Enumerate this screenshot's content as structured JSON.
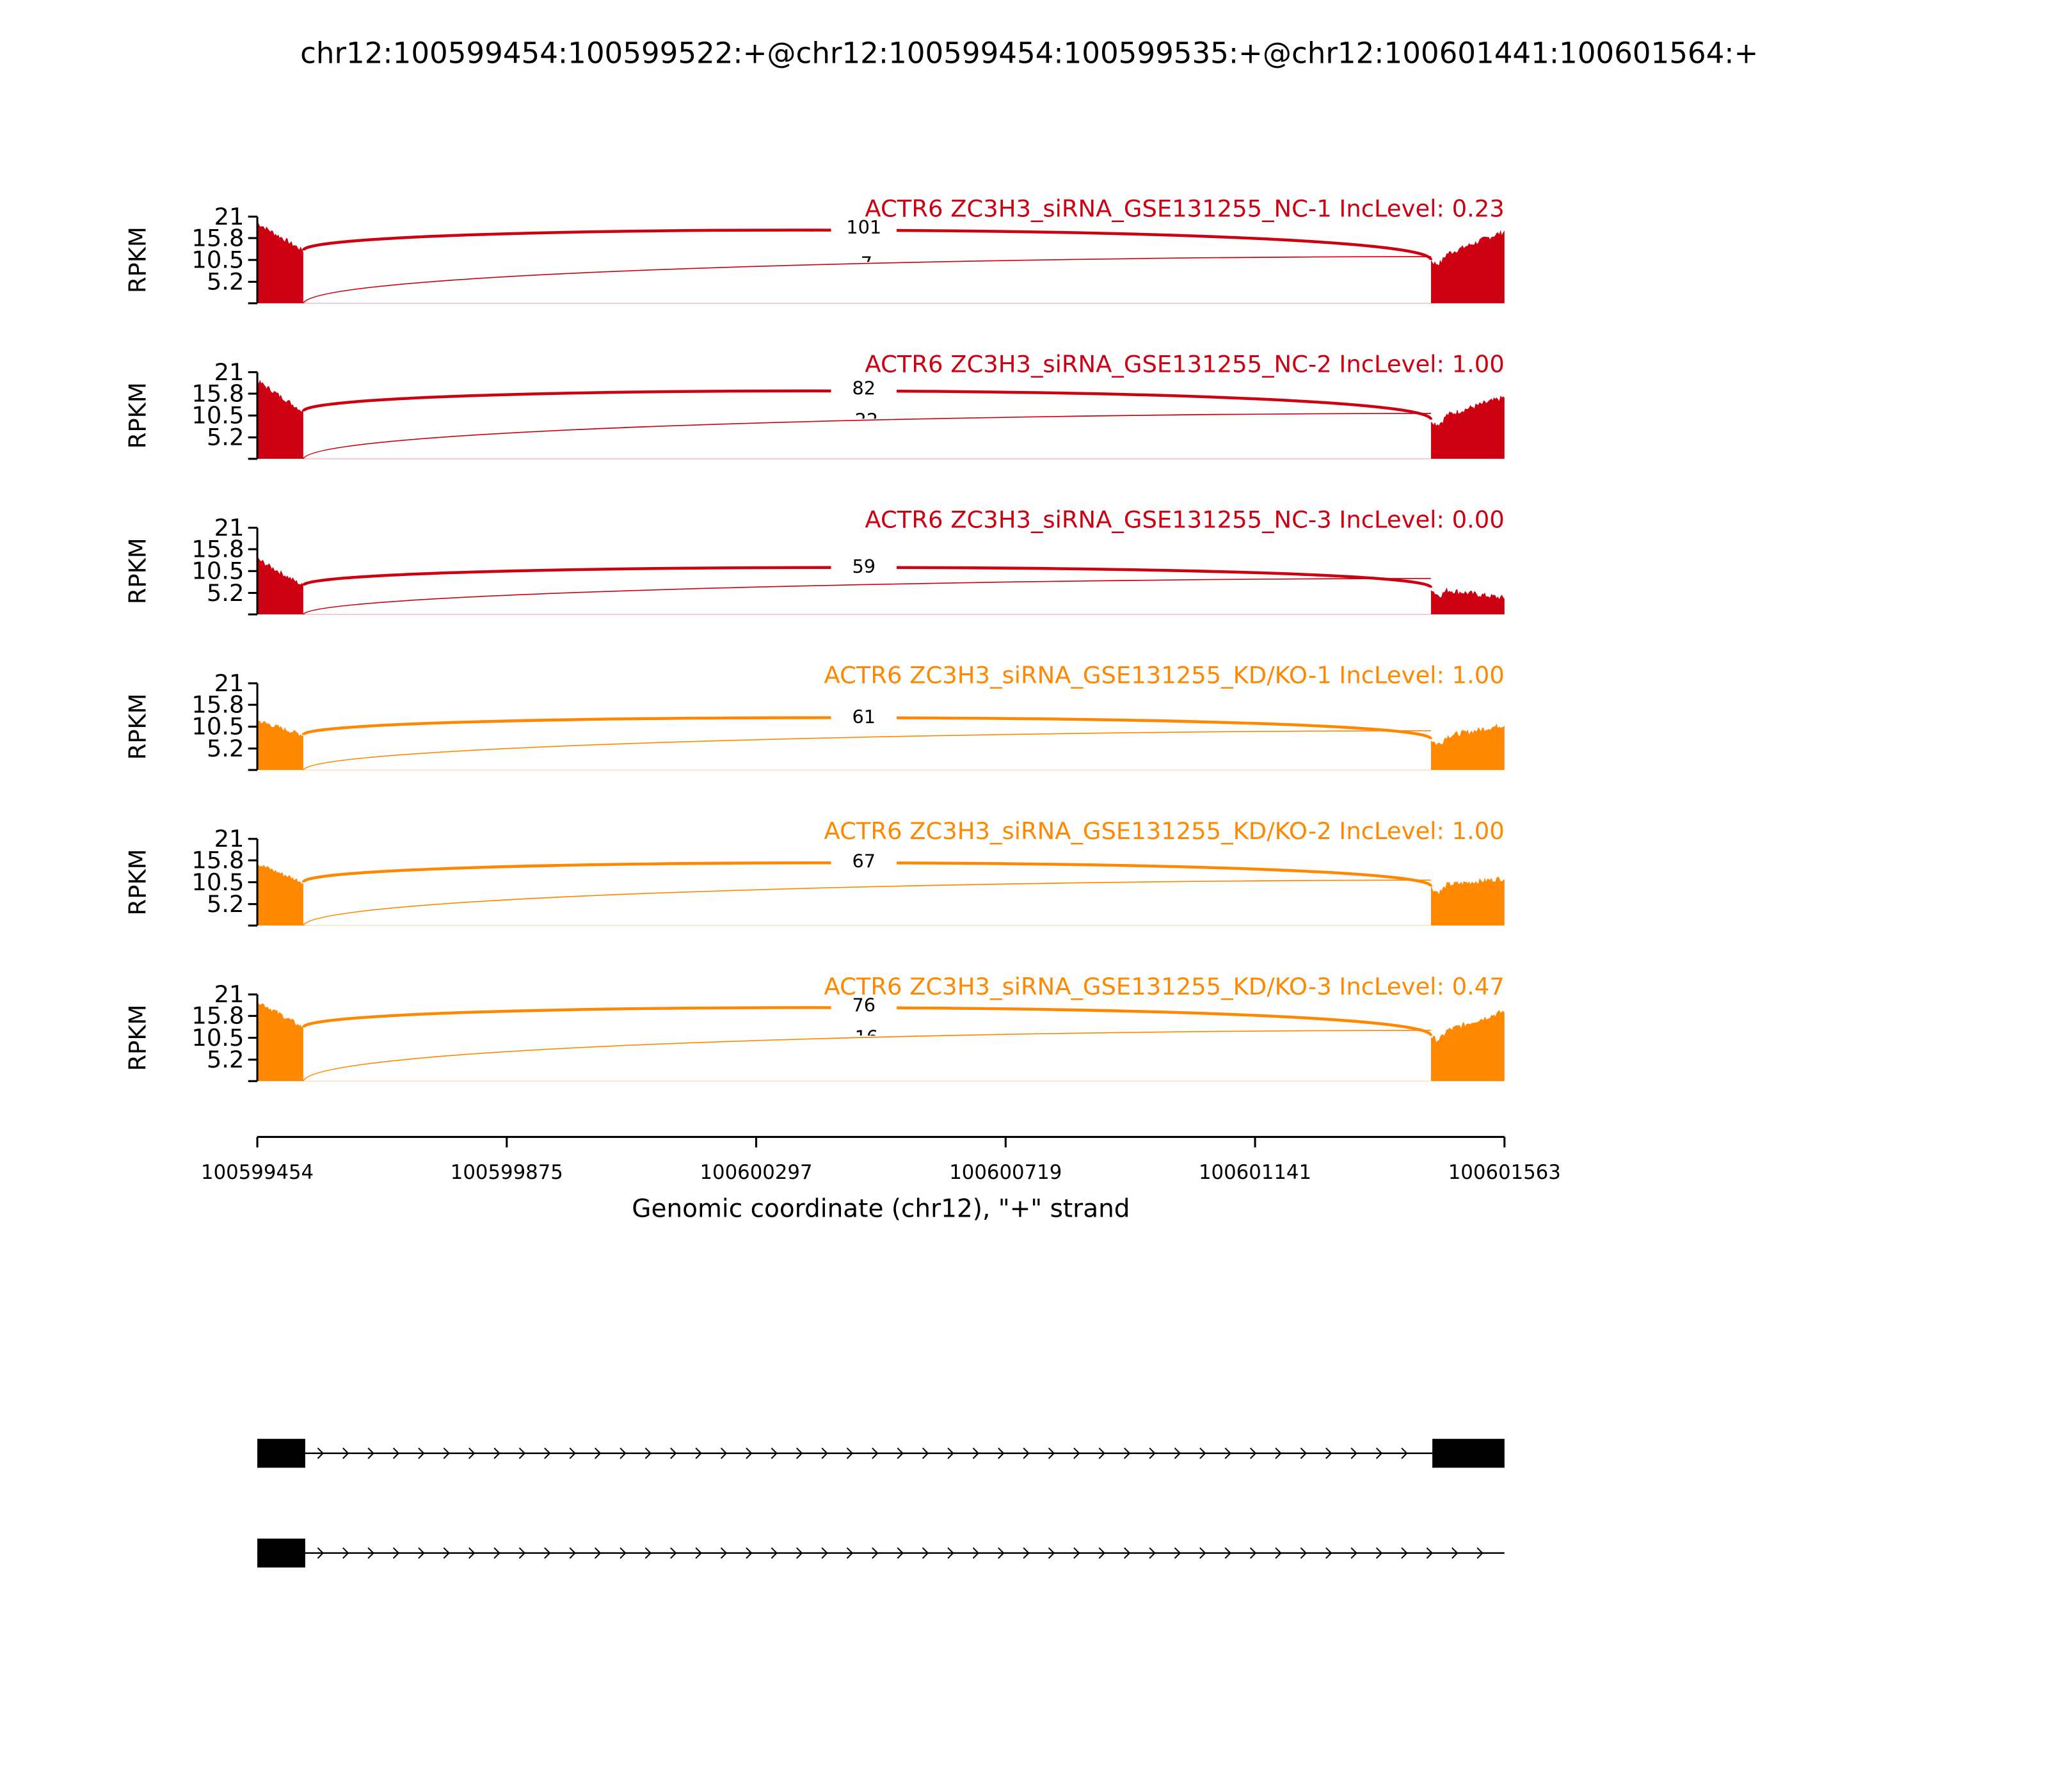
{
  "chart_data": {
    "type": "area",
    "title": "chr12:100599454:100599522:+@chr12:100599454:100599535:+@chr12:100601441:100601564:+",
    "xlabel": "Genomic coordinate (chr12), \"+\" strand",
    "ylabel": "RPKM",
    "xlim": [
      100599454,
      100601563
    ],
    "ylim": [
      0,
      21
    ],
    "x_ticks": [
      "100599454",
      "100599875",
      "100600297",
      "100600719",
      "100601141",
      "100601563"
    ],
    "y_ticks": [
      "21",
      "15.8",
      "10.5",
      "5.2"
    ],
    "colors": {
      "NC": "#cc0011",
      "KD": "#ff8800"
    },
    "panels": [
      {
        "label": "ACTR6 ZC3H3_siRNA_GSE131255_NC-1 IncLevel: 0.23",
        "group": "NC",
        "junction_main": "101",
        "junction_minor": "7",
        "left_exon": [
          19.5,
          12.8
        ],
        "right_exon": [
          10.5,
          17.5
        ],
        "arc_peak": 17.8,
        "minor_arc_end": 11.3
      },
      {
        "label": "ACTR6 ZC3H3_siRNA_GSE131255_NC-2 IncLevel: 1.00",
        "group": "NC",
        "junction_main": "82",
        "junction_minor": "22",
        "left_exon": [
          19.0,
          11.5
        ],
        "right_exon": [
          9.5,
          15.0
        ],
        "arc_peak": 16.5,
        "minor_arc_end": 11.0
      },
      {
        "label": "ACTR6 ZC3H3_siRNA_GSE131255_NC-3 IncLevel: 0.00",
        "group": "NC",
        "junction_main": "59",
        "junction_minor": "",
        "left_exon": [
          13.5,
          7.0
        ],
        "right_exon": [
          6.5,
          4.0
        ],
        "arc_peak": 11.0,
        "minor_arc_end": 8.7
      },
      {
        "label": "ACTR6 ZC3H3_siRNA_GSE131255_KD/KO-1 IncLevel: 1.00",
        "group": "KD",
        "junction_main": "61",
        "junction_minor": "",
        "left_exon": [
          12.0,
          8.5
        ],
        "right_exon": [
          7.5,
          11.0
        ],
        "arc_peak": 12.3,
        "minor_arc_end": 9.5
      },
      {
        "label": "ACTR6 ZC3H3_siRNA_GSE131255_KD/KO-2 IncLevel: 1.00",
        "group": "KD",
        "junction_main": "67",
        "junction_minor": "",
        "left_exon": [
          15.0,
          10.5
        ],
        "right_exon": [
          9.5,
          11.5
        ],
        "arc_peak": 15.0,
        "minor_arc_end": 11.0
      },
      {
        "label": "ACTR6 ZC3H3_siRNA_GSE131255_KD/KO-3 IncLevel: 0.47",
        "group": "KD",
        "junction_main": "76",
        "junction_minor": "16",
        "left_exon": [
          19.5,
          13.0
        ],
        "right_exon": [
          11.0,
          17.0
        ],
        "arc_peak": 17.8,
        "minor_arc_end": 12.3
      }
    ],
    "gene_models": [
      {
        "exons": [
          [
            100599454,
            100599535
          ],
          [
            100601441,
            100601563
          ]
        ]
      },
      {
        "exons": [
          [
            100599454,
            100599535
          ]
        ]
      }
    ]
  }
}
